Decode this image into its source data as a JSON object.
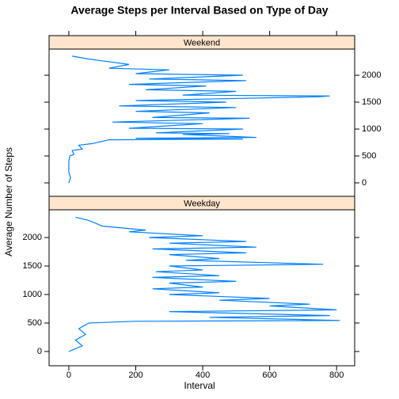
{
  "chart_data": {
    "type": "line",
    "title": "Average Steps per Interval Based on Type of Day",
    "xlabel": "Interval",
    "ylabel": "Average Number of Steps",
    "color": "#0080ff",
    "xlim": [
      -59,
      854
    ],
    "xticks": [
      0,
      200,
      400,
      600,
      800
    ],
    "ylim": [
      -250,
      2486
    ],
    "yticks": [
      0,
      500,
      1000,
      1500,
      2000
    ],
    "panels": [
      {
        "name": "Weekend",
        "x": [
          0,
          5,
          0,
          0,
          0,
          3,
          15,
          10,
          40,
          30,
          70,
          120,
          520,
          200,
          560,
          340,
          480,
          260,
          520,
          180,
          400,
          130,
          540,
          250,
          420,
          200,
          500,
          150,
          470,
          200,
          750,
          780,
          340,
          500,
          230,
          410,
          180,
          530,
          240,
          520,
          200,
          300,
          120,
          180,
          60,
          10
        ],
        "y": [
          0,
          100,
          200,
          300,
          400,
          500,
          530,
          600,
          630,
          700,
          730,
          800,
          815,
          830,
          845,
          900,
          915,
          930,
          1000,
          1015,
          1100,
          1130,
          1200,
          1215,
          1300,
          1330,
          1400,
          1430,
          1500,
          1530,
          1600,
          1615,
          1630,
          1700,
          1730,
          1800,
          1830,
          1900,
          1930,
          2000,
          2030,
          2100,
          2130,
          2200,
          2300,
          2355
        ]
      },
      {
        "name": "Weekday",
        "x": [
          0,
          40,
          20,
          50,
          30,
          60,
          200,
          810,
          420,
          780,
          300,
          800,
          600,
          720,
          450,
          600,
          300,
          450,
          250,
          400,
          300,
          500,
          250,
          450,
          260,
          400,
          300,
          760,
          350,
          450,
          300,
          530,
          250,
          560,
          300,
          530,
          240,
          400,
          180,
          230,
          100,
          60,
          20
        ],
        "y": [
          0,
          100,
          200,
          300,
          400,
          500,
          530,
          545,
          600,
          630,
          700,
          730,
          800,
          830,
          900,
          930,
          1000,
          1030,
          1100,
          1130,
          1200,
          1230,
          1300,
          1330,
          1400,
          1430,
          1500,
          1530,
          1600,
          1630,
          1700,
          1730,
          1800,
          1830,
          1900,
          1930,
          2000,
          2030,
          2100,
          2130,
          2200,
          2300,
          2355
        ]
      }
    ]
  }
}
